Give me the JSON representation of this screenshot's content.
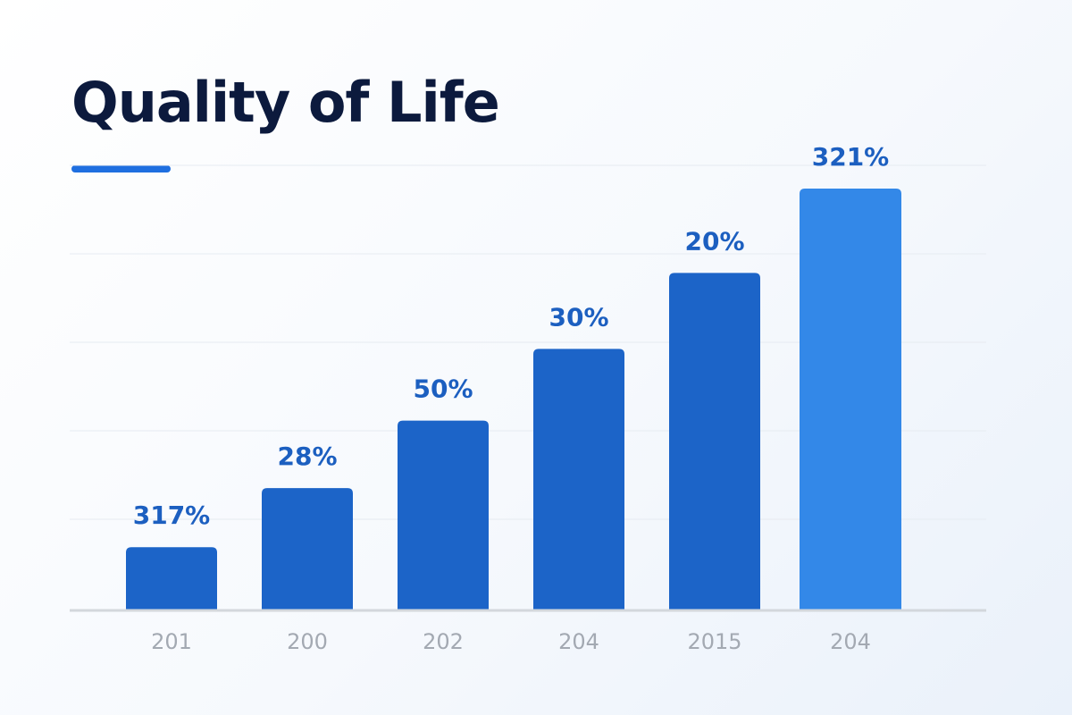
{
  "chart_data": {
    "type": "bar",
    "title": "Quality of Life",
    "categories": [
      "201",
      "200",
      "202",
      "204",
      "2015",
      "204"
    ],
    "bar_heights_relative": [
      0.15,
      0.29,
      0.45,
      0.62,
      0.8,
      1.0
    ],
    "data_labels": [
      "317%",
      "28%",
      "50%",
      "30%",
      "20%",
      "321%"
    ],
    "xlabel": "",
    "ylabel": "",
    "grid": true,
    "legend": "none",
    "highlighted_index": 5
  },
  "colors": {
    "accent": "#1f6fe0",
    "bar": "#1c64c8",
    "bar_highlight": "#3388e8",
    "label": "#1c5fc0",
    "tick": "#a3a9b2",
    "title": "#0c1a3d",
    "grid": "#e6ebf1",
    "axis": "#d3d7dc"
  }
}
